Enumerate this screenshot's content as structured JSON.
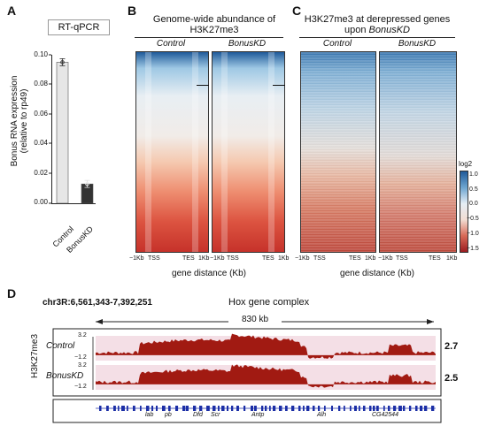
{
  "panels": {
    "a": "A",
    "b": "B",
    "c": "C",
    "d": "D"
  },
  "panel_a": {
    "box_title": "RT-qPCR",
    "ylabel_line1": "Bonus RNA expression",
    "ylabel_line2": "(relative to rp49)",
    "ticks": [
      "0.10",
      "0.08",
      "0.06",
      "0.04",
      "0.02",
      "0.00"
    ],
    "categories": [
      "Control",
      "BonusKD"
    ]
  },
  "panel_b": {
    "title_line1": "Genome-wide abundance of",
    "title_line2": "H3K27me3",
    "col_control": "Control",
    "col_kd": "BonusKD",
    "x_ticks_left": [
      "−1Kb",
      "TSS",
      "TES",
      "1Kb"
    ],
    "x_ticks_right": [
      "−1Kb",
      "TSS",
      "TES",
      "1Kb"
    ],
    "xlabel": "gene distance (Kb)"
  },
  "panel_c": {
    "title_line1": "H3K27me3 at derepressed genes",
    "title_line2_prefix": "upon ",
    "title_line2_italic": "BonusKD",
    "col_control": "Control",
    "col_kd": "BonusKD",
    "x_ticks_left": [
      "−1Kb",
      "TSS",
      "TES",
      "1Kb"
    ],
    "x_ticks_right": [
      "−1Kb",
      "TSS",
      "TES",
      "1Kb"
    ],
    "xlabel": "gene distance (Kb)",
    "legend_title": "log2",
    "legend_ticks": [
      "1.0",
      "0.5",
      "0.0",
      "−0.5",
      "−1.0",
      "−1.5"
    ]
  },
  "panel_d": {
    "region": "chr3R:6,561,343-7,392,251",
    "title": "Hox gene complex",
    "span": "830 kb",
    "ylabel": "H3K27me3",
    "track1_name": "Control",
    "track2_name": "BonusKD",
    "ymax": "3.2",
    "ymin": "−1.2",
    "track1_value": "2.7",
    "track2_value": "2.5",
    "genes": [
      "lab",
      "pb",
      "Dfd",
      "Scr",
      "Antp",
      "Alh",
      "CG42544"
    ]
  },
  "chart_data": [
    {
      "type": "bar",
      "categories": [
        "Control",
        "BonusKD"
      ],
      "values": [
        0.095,
        0.013
      ],
      "ylabel": "Bonus RNA expression (relative to rp49)",
      "ylim": [
        0,
        0.1
      ],
      "colors": [
        "#e6e6e6",
        "#333333"
      ],
      "grid": false
    },
    {
      "type": "heatmap",
      "title": "Genome-wide abundance of H3K27me3",
      "columns": [
        "Control",
        "BonusKD"
      ],
      "xlabel": "gene distance (Kb)",
      "x_ticks": [
        "−1Kb",
        "TSS",
        "TES",
        "1Kb"
      ]
    },
    {
      "type": "heatmap",
      "title": "H3K27me3 at derepressed genes upon BonusKD",
      "columns": [
        "Control",
        "BonusKD"
      ],
      "xlabel": "gene distance (Kb)",
      "x_ticks": [
        "−1Kb",
        "TSS",
        "TES",
        "1Kb"
      ],
      "colorbar_label": "log2",
      "colorbar_range": [
        -1.5,
        1.0
      ],
      "colorbar_ticks": [
        1.0,
        0.5,
        0.0,
        -0.5,
        -1.0,
        -1.5
      ]
    },
    {
      "type": "area",
      "title": "Hox gene complex",
      "ylabel": "H3K27me3",
      "ylim": [
        -1.2,
        3.2
      ],
      "series": [
        {
          "name": "Control",
          "max": 2.7
        },
        {
          "name": "BonusKD",
          "max": 2.5
        }
      ]
    }
  ]
}
